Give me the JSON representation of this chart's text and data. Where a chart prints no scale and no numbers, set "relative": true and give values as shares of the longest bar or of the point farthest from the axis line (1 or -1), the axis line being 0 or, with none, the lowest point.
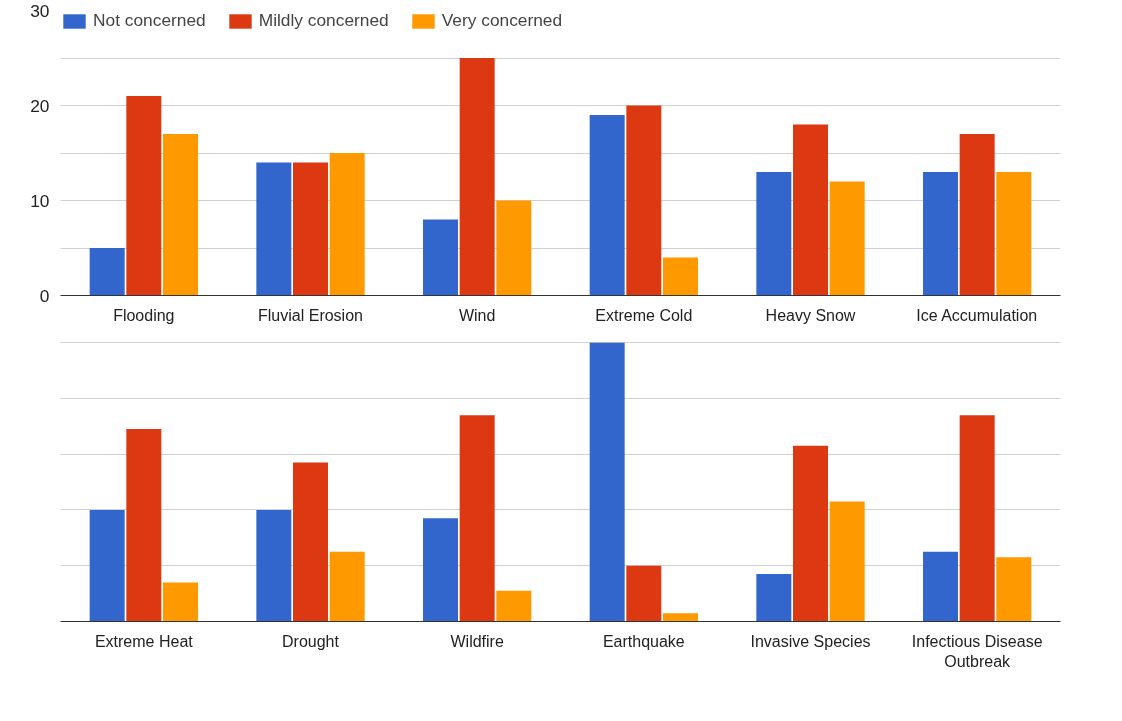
{
  "chart_data": [
    {
      "type": "bar",
      "categories": [
        "Flooding",
        "Fluvial Erosion",
        "Wind",
        "Extreme Cold",
        "Heavy Snow",
        "Ice Accumulation"
      ],
      "series": [
        {
          "name": "Not concerned",
          "color": "#3366cc",
          "values": [
            5,
            14,
            8,
            19,
            13,
            13
          ]
        },
        {
          "name": "Mildly concerned",
          "color": "#dc3912",
          "values": [
            21,
            14,
            25,
            20,
            18,
            17
          ]
        },
        {
          "name": "Very concerned",
          "color": "#ff9900",
          "values": [
            17,
            15,
            10,
            4,
            12,
            13
          ]
        }
      ],
      "ylim": [
        0,
        30
      ],
      "yticks": [
        0,
        {
          "value": 5,
          "label": null
        },
        10,
        {
          "value": 15,
          "label": null
        },
        20,
        {
          "value": 25,
          "label": null
        },
        30
      ],
      "grid": "y",
      "legend": "top left"
    },
    {
      "type": "bar",
      "relative": true,
      "categories": [
        "Extreme Heat",
        "Drought",
        "Wildfire",
        "Earthquake",
        "Invasive Species",
        "Infectious Disease Outbreak"
      ],
      "series": [
        {
          "color": "#3366cc",
          "values": [
            0.4,
            0.4,
            0.37,
            1,
            0.17,
            0.25
          ]
        },
        {
          "color": "#dc3912",
          "values": [
            0.69,
            0.57,
            0.74,
            0.2,
            0.63,
            0.74
          ]
        },
        {
          "color": "#ff9900",
          "values": [
            0.14,
            0.25,
            0.11,
            0.03,
            0.43,
            0.23
          ]
        }
      ],
      "grid": "y",
      "tick_labels": "x"
    }
  ]
}
